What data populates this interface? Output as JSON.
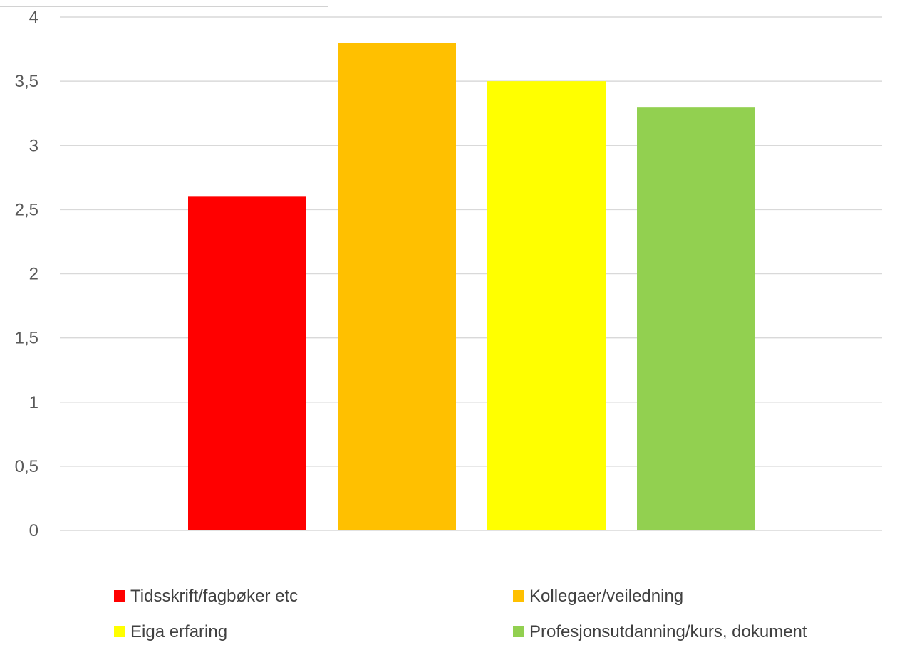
{
  "chart_data": {
    "type": "bar",
    "title": "",
    "xlabel": "",
    "ylabel": "",
    "ylim": [
      0,
      4
    ],
    "yticks": [
      0,
      0.5,
      1,
      1.5,
      2,
      2.5,
      3,
      3.5,
      4
    ],
    "ytick_labels": [
      "0",
      "0,5",
      "1",
      "1,5",
      "2",
      "2,5",
      "3",
      "3,5",
      "4"
    ],
    "grid": true,
    "legend_position": "bottom",
    "series": [
      {
        "name": "Tidsskrift/fagbøker etc",
        "value": 2.6,
        "color": "#ff0000"
      },
      {
        "name": "Kollegaer/veiledning",
        "value": 3.8,
        "color": "#ffc000"
      },
      {
        "name": "Eiga erfaring",
        "value": 3.5,
        "color": "#ffff00"
      },
      {
        "name": "Profesjonsutdanning/kurs, dokument",
        "value": 3.3,
        "color": "#92d050"
      }
    ]
  }
}
